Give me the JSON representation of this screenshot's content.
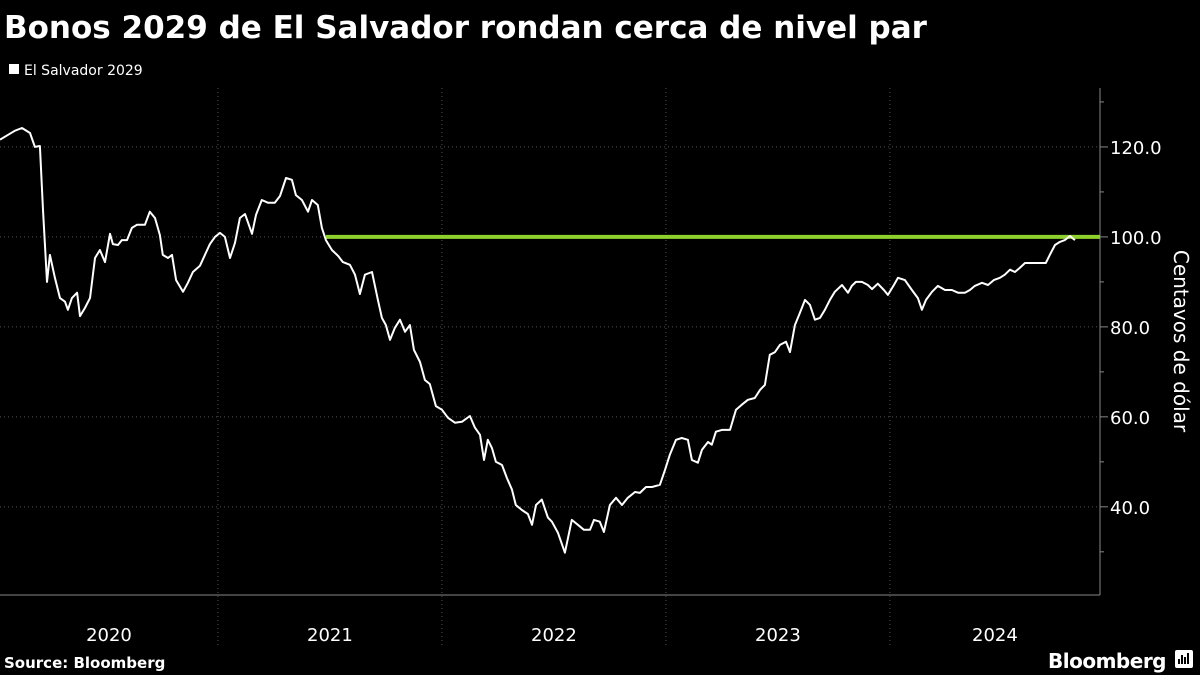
{
  "chart_data": {
    "type": "line",
    "title": "Bonos 2029 de El Salvador rondan cerca de nivel par",
    "y_label": "Centavos de dólar",
    "source": "Source: Bloomberg",
    "brand": "Bloomberg",
    "xlim": [
      2020.027,
      2024.938
    ],
    "xticks": [
      {
        "value": 2020,
        "label": "2020"
      },
      {
        "value": 2021,
        "label": "2021"
      },
      {
        "value": 2022,
        "label": "2022"
      },
      {
        "value": 2023,
        "label": "2023"
      },
      {
        "value": 2024,
        "label": "2024"
      }
    ],
    "ylim": [
      20.4,
      133.1
    ],
    "yticks": [
      {
        "value": 40,
        "label": "40.0"
      },
      {
        "value": 60,
        "label": "60.0"
      },
      {
        "value": 80,
        "label": "80.0"
      },
      {
        "value": 100,
        "label": "100.0"
      },
      {
        "value": 120,
        "label": "120.0"
      }
    ],
    "grid": true,
    "legend": "top-left",
    "reference_line": {
      "value": 100,
      "x_start": 2021.482,
      "color": "#8fd12c"
    },
    "x": [
      2020.027,
      2020.063,
      2020.094,
      2020.125,
      2020.161,
      2020.183,
      2020.205,
      2020.219,
      2020.237,
      2020.25,
      2020.272,
      2020.295,
      2020.317,
      2020.33,
      2020.348,
      2020.371,
      2020.384,
      2020.406,
      2020.429,
      2020.451,
      2020.473,
      2020.496,
      2020.518,
      2020.531,
      2020.554,
      2020.571,
      2020.594,
      2020.616,
      2020.638,
      2020.674,
      2020.696,
      2020.719,
      2020.741,
      2020.754,
      2020.777,
      2020.795,
      2020.813,
      2020.844,
      2020.866,
      2020.888,
      2020.92,
      2020.942,
      2020.964,
      2020.987,
      2021.009,
      2021.031,
      2021.054,
      2021.076,
      2021.098,
      2021.121,
      2021.152,
      2021.17,
      2021.196,
      2021.223,
      2021.254,
      2021.277,
      2021.304,
      2021.33,
      2021.348,
      2021.375,
      2021.402,
      2021.42,
      2021.446,
      2021.464,
      2021.482,
      2021.509,
      2021.536,
      2021.558,
      2021.589,
      2021.612,
      2021.634,
      2021.656,
      2021.688,
      2021.714,
      2021.732,
      2021.75,
      2021.768,
      2021.79,
      2021.813,
      2021.835,
      2021.857,
      2021.875,
      2021.902,
      2021.924,
      2021.946,
      2021.973,
      2022.0,
      2022.027,
      2022.058,
      2022.089,
      2022.125,
      2022.147,
      2022.17,
      2022.188,
      2022.205,
      2022.223,
      2022.241,
      2022.268,
      2022.29,
      2022.313,
      2022.33,
      2022.357,
      2022.384,
      2022.402,
      2022.42,
      2022.446,
      2022.473,
      2022.491,
      2022.518,
      2022.549,
      2022.58,
      2022.607,
      2022.634,
      2022.661,
      2022.679,
      2022.705,
      2022.723,
      2022.75,
      2022.777,
      2022.804,
      2022.83,
      2022.862,
      2022.884,
      2022.911,
      2022.938,
      2022.973,
      2022.996,
      2023.018,
      2023.045,
      2023.071,
      2023.098,
      2023.116,
      2023.143,
      2023.161,
      2023.188,
      2023.205,
      2023.223,
      2023.25,
      2023.286,
      2023.313,
      2023.339,
      2023.366,
      2023.397,
      2023.42,
      2023.442,
      2023.464,
      2023.487,
      2023.509,
      2023.536,
      2023.554,
      2023.576,
      2023.598,
      2023.621,
      2023.643,
      2023.665,
      2023.688,
      2023.71,
      2023.732,
      2023.754,
      2023.786,
      2023.813,
      2023.83,
      2023.848,
      2023.875,
      2023.902,
      2023.92,
      2023.946,
      2023.973,
      2023.991,
      2024.018,
      2024.036,
      2024.067,
      2024.098,
      2024.125,
      2024.143,
      2024.161,
      2024.188,
      2024.214,
      2024.246,
      2024.277,
      2024.304,
      2024.335,
      2024.357,
      2024.379,
      2024.411,
      2024.438,
      2024.464,
      2024.491,
      2024.513,
      2024.536,
      2024.558,
      2024.58,
      2024.603,
      2024.634,
      2024.67,
      2024.696,
      2024.714,
      2024.737,
      2024.759,
      2024.781,
      2024.804,
      2024.826
    ],
    "series": [
      {
        "name": "El Salvador 2029",
        "color": "#ffffff",
        "values": [
          121.6,
          122.7,
          123.6,
          124.2,
          123.1,
          120.0,
          120.2,
          106.0,
          90.0,
          96.0,
          90.9,
          86.4,
          85.6,
          83.8,
          86.4,
          87.6,
          82.4,
          84.2,
          86.4,
          95.3,
          97.1,
          94.4,
          100.7,
          98.4,
          98.2,
          99.3,
          99.3,
          102.0,
          102.7,
          102.7,
          105.6,
          104.2,
          100.4,
          96.0,
          95.3,
          96.0,
          90.4,
          87.8,
          89.8,
          92.2,
          93.6,
          96.0,
          98.4,
          100.0,
          100.9,
          100.0,
          95.3,
          98.7,
          104.2,
          105.1,
          100.7,
          104.9,
          108.2,
          107.6,
          107.6,
          109.1,
          113.1,
          112.7,
          109.3,
          108.2,
          105.6,
          108.2,
          107.1,
          102.0,
          99.3,
          97.1,
          95.8,
          94.4,
          93.8,
          91.6,
          87.3,
          91.6,
          92.2,
          86.0,
          82.0,
          80.4,
          77.1,
          79.8,
          81.6,
          78.9,
          80.4,
          74.9,
          72.2,
          68.2,
          67.3,
          62.4,
          61.6,
          59.8,
          58.7,
          58.9,
          60.2,
          57.6,
          56.0,
          50.4,
          54.9,
          53.1,
          50.0,
          49.3,
          46.4,
          43.8,
          40.4,
          39.3,
          38.4,
          36.0,
          40.4,
          41.6,
          37.6,
          36.7,
          34.2,
          29.8,
          37.1,
          36.0,
          34.9,
          34.9,
          37.1,
          36.7,
          34.4,
          40.4,
          42.0,
          40.4,
          42.0,
          43.3,
          43.1,
          44.4,
          44.4,
          44.9,
          48.2,
          51.6,
          54.9,
          55.3,
          54.9,
          50.4,
          49.8,
          52.7,
          54.4,
          53.8,
          56.7,
          57.1,
          57.1,
          61.6,
          62.7,
          63.8,
          64.2,
          66.0,
          67.1,
          73.8,
          74.4,
          76.0,
          76.7,
          74.4,
          80.4,
          83.1,
          86.0,
          84.9,
          81.6,
          82.0,
          83.8,
          86.0,
          87.8,
          89.3,
          87.6,
          89.1,
          90.0,
          90.0,
          89.3,
          88.4,
          89.6,
          88.2,
          87.1,
          89.3,
          90.9,
          90.4,
          88.2,
          86.4,
          83.8,
          86.0,
          87.8,
          89.1,
          88.2,
          88.2,
          87.6,
          87.6,
          88.2,
          89.1,
          89.8,
          89.3,
          90.4,
          90.9,
          91.6,
          92.7,
          92.2,
          93.1,
          94.2,
          94.2,
          94.2,
          94.2,
          96.0,
          98.2,
          98.9,
          99.3,
          100.2,
          99.3
        ]
      }
    ]
  }
}
